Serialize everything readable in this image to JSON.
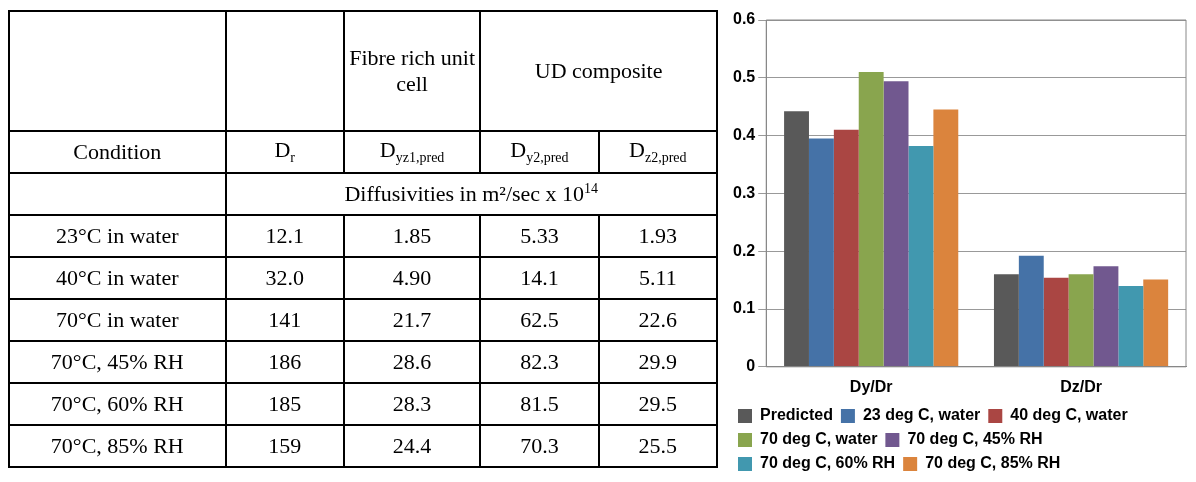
{
  "chart_data": [
    {
      "type": "heatmap",
      "xlabel": "Condition",
      "categories": [
        "D$_{r}$",
        "D$_{yz1,pred}$",
        "D$_{y2,pred}$",
        "D$_{z2,pred}$"
      ],
      "y_categories": [
        "23°C in water",
        "40°C in water",
        "70°C in water",
        "70°C, 45% RH",
        "70°C, 60% RH",
        "70°C, 85% RH"
      ],
      "cells": [
        [
          12.1,
          1.85,
          5.33,
          1.93
        ],
        [
          32.0,
          4.9,
          14.1,
          5.11
        ],
        [
          141,
          21.7,
          62.5,
          22.6
        ],
        [
          186,
          28.6,
          82.3,
          29.9
        ],
        [
          185,
          28.3,
          81.5,
          29.5
        ],
        [
          159,
          24.4,
          70.3,
          25.5
        ]
      ],
      "cell_labels": [
        [
          "12.1",
          "1.85",
          "5.33",
          "1.93"
        ],
        [
          "32.0",
          "4.90",
          "14.1",
          "5.11"
        ],
        [
          "141",
          "21.7",
          "62.5",
          "22.6"
        ],
        [
          "186",
          "28.6",
          "82.3",
          "29.9"
        ],
        [
          "185",
          "28.3",
          "81.5",
          "29.5"
        ],
        [
          "159",
          "24.4",
          "70.3",
          "25.5"
        ]
      ],
      "annotations": [
        "Fibre rich unit cell",
        "UD composite",
        "Diffusivities in m²/sec x 10$^{14}$"
      ]
    },
    {
      "type": "bar",
      "categories": [
        "Dy/Dr",
        "Dz/Dr"
      ],
      "series": [
        {
          "name": "Predicted",
          "color": "#595959",
          "values": [
            0.442,
            0.16
          ]
        },
        {
          "name": "23 deg C, water",
          "color": "#4572a7",
          "values": [
            0.395,
            0.192
          ]
        },
        {
          "name": "40 deg C, water",
          "color": "#aa4643",
          "values": [
            0.41,
            0.154
          ]
        },
        {
          "name": "70 deg C, water",
          "color": "#89a54e",
          "values": [
            0.51,
            0.16
          ]
        },
        {
          "name": "70 deg C, 45% RH",
          "color": "#71588f",
          "values": [
            0.494,
            0.174
          ]
        },
        {
          "name": "70 deg C, 60% RH",
          "color": "#4198af",
          "values": [
            0.382,
            0.14
          ]
        },
        {
          "name": "70 deg C, 85% RH",
          "color": "#db843d",
          "values": [
            0.445,
            0.151
          ]
        }
      ],
      "ylim": [
        0,
        0.6
      ],
      "yticks": [
        0,
        0.1,
        0.2,
        0.3,
        0.4,
        0.5,
        0.6
      ],
      "grid": "y",
      "legend": "bottom"
    }
  ]
}
